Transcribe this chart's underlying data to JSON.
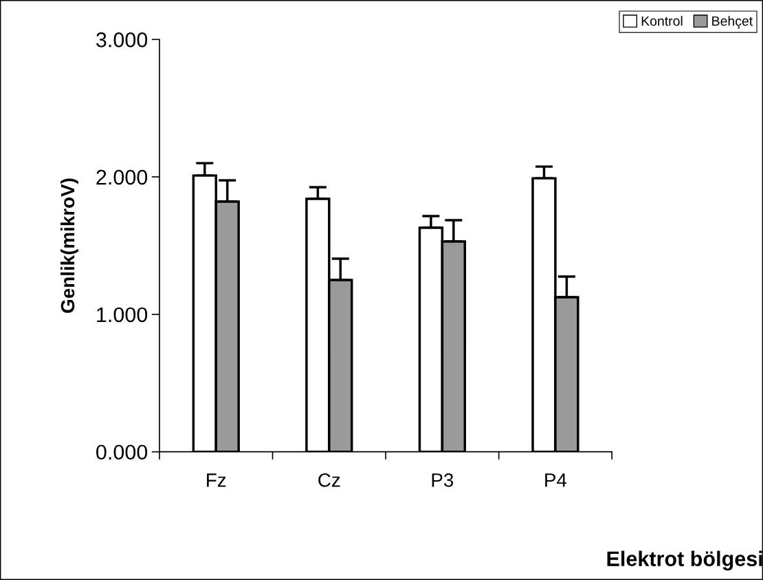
{
  "chart_data": {
    "type": "bar",
    "xlabel": "Elektrot bölgesi",
    "ylabel": "Genlik(mikroV)",
    "categories": [
      "Fz",
      "Cz",
      "P3",
      "P4"
    ],
    "series": [
      {
        "name": "Kontrol",
        "color": "#ffffff",
        "values": [
          2.01,
          1.84,
          1.63,
          1.99
        ],
        "errors": [
          [
            2.01,
            2.1
          ],
          [
            1.84,
            1.925
          ],
          [
            1.63,
            1.715
          ],
          [
            1.99,
            2.075
          ]
        ]
      },
      {
        "name": "Behçet",
        "color": "#9a9a9a",
        "values": [
          1.82,
          1.25,
          1.53,
          1.125
        ],
        "errors": [
          [
            1.82,
            1.975
          ],
          [
            1.25,
            1.405
          ],
          [
            1.53,
            1.685
          ],
          [
            1.125,
            1.275
          ]
        ]
      }
    ],
    "ylim": [
      0,
      3
    ],
    "yticks": [
      {
        "value": 0,
        "label": "0.000"
      },
      {
        "value": 1,
        "label": "1.000"
      },
      {
        "value": 2,
        "label": "2.000"
      },
      {
        "value": 3,
        "label": "3.000"
      }
    ],
    "legend": "top right",
    "grid": false
  }
}
